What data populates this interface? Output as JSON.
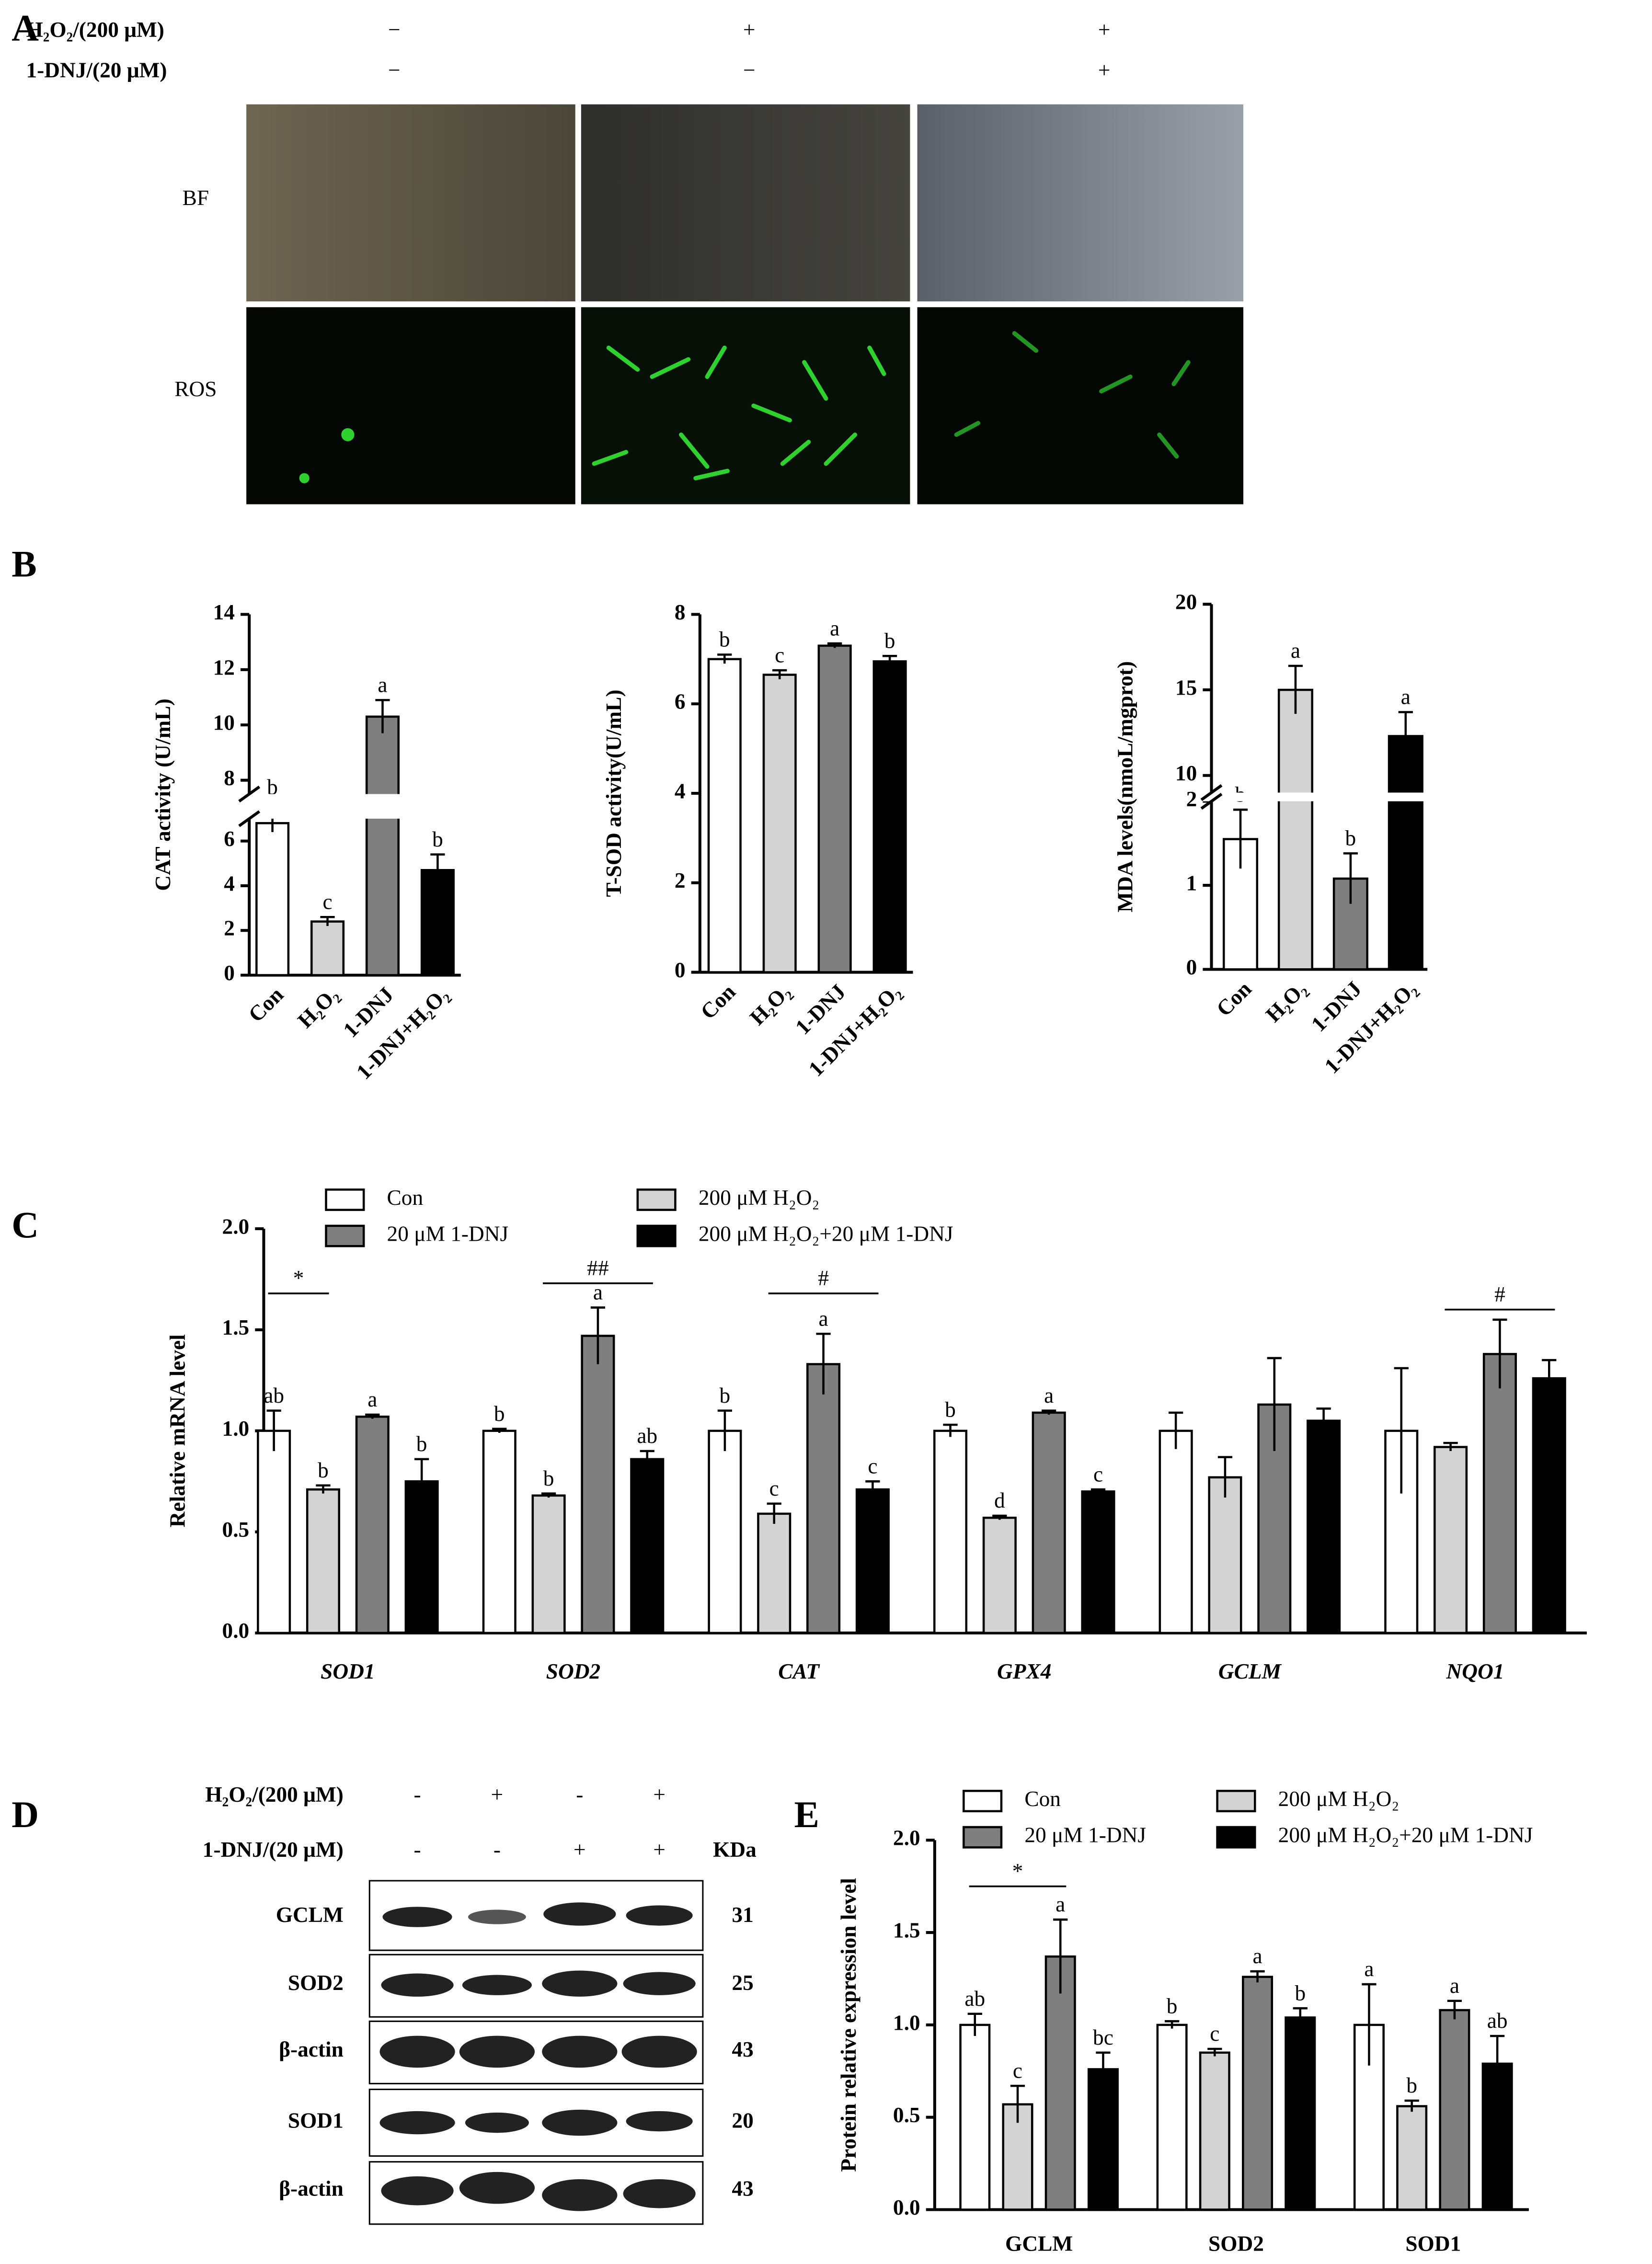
{
  "panel_a": {
    "label": "A",
    "rows": [
      {
        "label": "H₂O₂/(200 μM)",
        "signs": [
          "−",
          "+",
          "+"
        ]
      },
      {
        "label": "1-DNJ/(20 μM)",
        "signs": [
          "−",
          "−",
          "+"
        ]
      }
    ],
    "images": [
      "BF",
      "ROS"
    ]
  },
  "chart_data": [
    {
      "type": "bar",
      "panel": "B",
      "y_label": "CAT activity (U/mL)",
      "categories": [
        "Con",
        "H₂O₂",
        "1-DNJ",
        "1-DNJ+H₂O₂"
      ],
      "values": [
        6.8,
        2.4,
        10.3,
        4.7
      ],
      "errors": [
        0.4,
        0.2,
        0.6,
        0.7
      ],
      "letters": [
        "b",
        "c",
        "a",
        "b"
      ],
      "colors": [
        "#ffffff",
        "#d3d3d3",
        "#7f7f7f",
        "#000000"
      ],
      "ylim": [
        0,
        14
      ],
      "y_break": [
        7,
        7.5
      ],
      "yticks": [
        0,
        2,
        4,
        6,
        8,
        10,
        12,
        14
      ]
    },
    {
      "type": "bar",
      "y_label": "T-SOD activity(U/mL)",
      "categories": [
        "Con",
        "H₂O₂",
        "1-DNJ",
        "1-DNJ+H₂O₂"
      ],
      "values": [
        7.0,
        6.65,
        7.3,
        6.95
      ],
      "errors": [
        0.1,
        0.1,
        0.05,
        0.12
      ],
      "letters": [
        "b",
        "c",
        "a",
        "b"
      ],
      "colors": [
        "#ffffff",
        "#d3d3d3",
        "#7f7f7f",
        "#000000"
      ],
      "ylim": [
        0,
        8
      ],
      "yticks": [
        0,
        2,
        4,
        6,
        8
      ]
    },
    {
      "type": "bar",
      "y_label": "MDA levels(nmoL/mgprot)",
      "categories": [
        "Con",
        "H₂O₂",
        "1-DNJ",
        "1-DNJ+H₂O₂"
      ],
      "values": [
        1.55,
        15.0,
        1.08,
        12.3
      ],
      "errors": [
        0.35,
        1.4,
        0.3,
        1.4
      ],
      "letters": [
        "b",
        "a",
        "b",
        "a"
      ],
      "colors": [
        "#ffffff",
        "#d3d3d3",
        "#7f7f7f",
        "#000000"
      ],
      "ylim": [
        0,
        20
      ],
      "y_break": [
        2,
        9
      ],
      "yticks": [
        0,
        1,
        2,
        10,
        15,
        20
      ]
    },
    {
      "type": "grouped_bar",
      "panel": "C",
      "y_label": "Relative mRNA level",
      "category_style": "italic",
      "legend": true,
      "categories": [
        "SOD1",
        "SOD2",
        "CAT",
        "GPX4",
        "GCLM",
        "NQO1"
      ],
      "series": [
        {
          "name": "Con",
          "color": "#ffffff",
          "values": [
            1.0,
            1.0,
            1.0,
            1.0,
            1.0,
            1.0
          ],
          "errors": [
            0.1,
            0.01,
            0.1,
            0.03,
            0.09,
            0.31
          ],
          "letters": [
            "ab",
            "b",
            "b",
            "b",
            null,
            null
          ]
        },
        {
          "name": "200 μM H₂O₂",
          "color": "#d3d3d3",
          "values": [
            0.71,
            0.68,
            0.59,
            0.57,
            0.77,
            0.92
          ],
          "errors": [
            0.02,
            0.01,
            0.05,
            0.01,
            0.1,
            0.02
          ],
          "letters": [
            "b",
            "b",
            "c",
            "d",
            null,
            null
          ]
        },
        {
          "name": "20 μM 1-DNJ",
          "color": "#7f7f7f",
          "values": [
            1.07,
            1.47,
            1.33,
            1.09,
            1.13,
            1.38
          ],
          "errors": [
            0.01,
            0.14,
            0.15,
            0.01,
            0.23,
            0.17
          ],
          "letters": [
            "a",
            "a",
            "a",
            "a",
            null,
            null
          ]
        },
        {
          "name": "200 μM H₂O₂+20 μM 1-DNJ",
          "color": "#000000",
          "values": [
            0.75,
            0.86,
            0.71,
            0.7,
            1.05,
            1.26
          ],
          "errors": [
            0.11,
            0.04,
            0.04,
            0.01,
            0.06,
            0.09
          ],
          "letters": [
            "b",
            "ab",
            "c",
            "c",
            null,
            null
          ]
        }
      ],
      "brackets": [
        {
          "category": 0,
          "from": 0,
          "to": 1,
          "label": "*",
          "y": 1.68
        },
        {
          "category": 1,
          "from": 1,
          "to": 3,
          "label": "##",
          "y": 1.73
        },
        {
          "category": 2,
          "from": 1,
          "to": 3,
          "label": "#",
          "y": 1.68
        },
        {
          "category": 5,
          "from": 1,
          "to": 3,
          "label": "#",
          "y": 1.6
        }
      ],
      "ylim": [
        0,
        2
      ],
      "yticks": [
        {
          "value": 0,
          "label": "0.0"
        },
        {
          "value": 0.5,
          "label": "0.5"
        },
        {
          "value": 1,
          "label": "1.0"
        },
        {
          "value": 1.5,
          "label": "1.5"
        },
        {
          "value": 2,
          "label": "2.0"
        }
      ]
    },
    {
      "type": "grouped_bar",
      "panel": "E",
      "y_label": "Protein relative expression level",
      "legend": true,
      "categories": [
        "GCLM",
        "SOD2",
        "SOD1"
      ],
      "series": [
        {
          "name": "Con",
          "color": "#ffffff",
          "values": [
            1.0,
            1.0,
            1.0
          ],
          "errors": [
            0.06,
            0.02,
            0.22
          ],
          "letters": [
            "ab",
            "b",
            "a"
          ]
        },
        {
          "name": "200 μM H₂O₂",
          "color": "#d3d3d3",
          "values": [
            0.57,
            0.85,
            0.56
          ],
          "errors": [
            0.1,
            0.02,
            0.03
          ],
          "letters": [
            "c",
            "c",
            "b"
          ]
        },
        {
          "name": "20 μM 1-DNJ",
          "color": "#7f7f7f",
          "values": [
            1.37,
            1.26,
            1.08
          ],
          "errors": [
            0.2,
            0.03,
            0.05
          ],
          "letters": [
            "a",
            "a",
            "a"
          ]
        },
        {
          "name": "200 μM H₂O₂+20 μM 1-DNJ",
          "color": "#000000",
          "values": [
            0.76,
            1.04,
            0.79
          ],
          "errors": [
            0.09,
            0.05,
            0.15
          ],
          "letters": [
            "bc",
            "b",
            "ab"
          ]
        }
      ],
      "brackets": [
        {
          "category": 0,
          "from": 0,
          "to": 2,
          "label": "*",
          "y": 1.75
        }
      ],
      "ylim": [
        0,
        2
      ],
      "yticks": [
        {
          "value": 0,
          "label": "0.0"
        },
        {
          "value": 0.5,
          "label": "0.5"
        },
        {
          "value": 1,
          "label": "1.0"
        },
        {
          "value": 1.5,
          "label": "1.5"
        },
        {
          "value": 2,
          "label": "2.0"
        }
      ]
    }
  ],
  "panel_d": {
    "label": "D",
    "rows": [
      {
        "label": "H₂O₂/(200 μM)",
        "signs": [
          "-",
          "+",
          "-",
          "+"
        ]
      },
      {
        "label": "1-DNJ/(20 μM)",
        "signs": [
          "-",
          "-",
          "+",
          "+"
        ]
      }
    ],
    "unit": "KDa",
    "blots": [
      {
        "name": "GCLM",
        "kda": 31
      },
      {
        "name": "SOD2",
        "kda": 25
      },
      {
        "name": "β-actin",
        "kda": 43
      },
      {
        "name": "SOD1",
        "kda": 20
      },
      {
        "name": "β-actin",
        "kda": 43
      }
    ]
  }
}
